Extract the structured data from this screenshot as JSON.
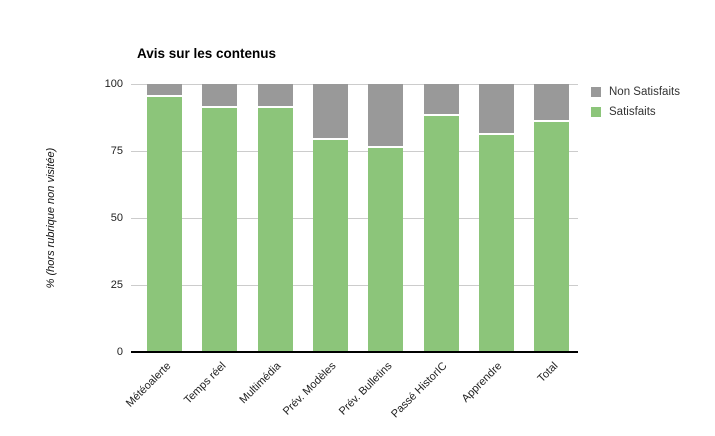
{
  "chart_data": {
    "type": "bar",
    "stacked": true,
    "title": "Avis sur les contenus",
    "xlabel": "",
    "ylabel": "% (hors rubrique non visitée)",
    "ylim": [
      0,
      100
    ],
    "y_ticks": [
      0,
      25,
      50,
      75,
      100
    ],
    "grid": true,
    "legend_position": "top-right",
    "categories": [
      "Météoalerte",
      "Temps réel",
      "Multimédia",
      "Prév. Modèles",
      "Prév. Bulletins",
      "Passé HistorIC",
      "Apprendre",
      "Total"
    ],
    "series": [
      {
        "name": "Satisfaits",
        "color": "#8cc57a",
        "values": [
          95,
          91,
          91,
          79,
          76,
          88,
          81,
          86
        ]
      },
      {
        "name": "Non Satisfaits",
        "color": "#999999",
        "values": [
          5,
          9,
          9,
          21,
          24,
          12,
          19,
          14
        ]
      }
    ],
    "legend": [
      {
        "label": "Non Satisfaits",
        "color": "#999999"
      },
      {
        "label": "Satisfaits",
        "color": "#8cc57a"
      }
    ]
  },
  "colors": {
    "background": "#ffffff",
    "gridline": "#cccccc",
    "axis": "#000000",
    "tick_text": "#222222",
    "label_text": "#222222",
    "legend_text": "#333333",
    "title_text": "#000000"
  }
}
